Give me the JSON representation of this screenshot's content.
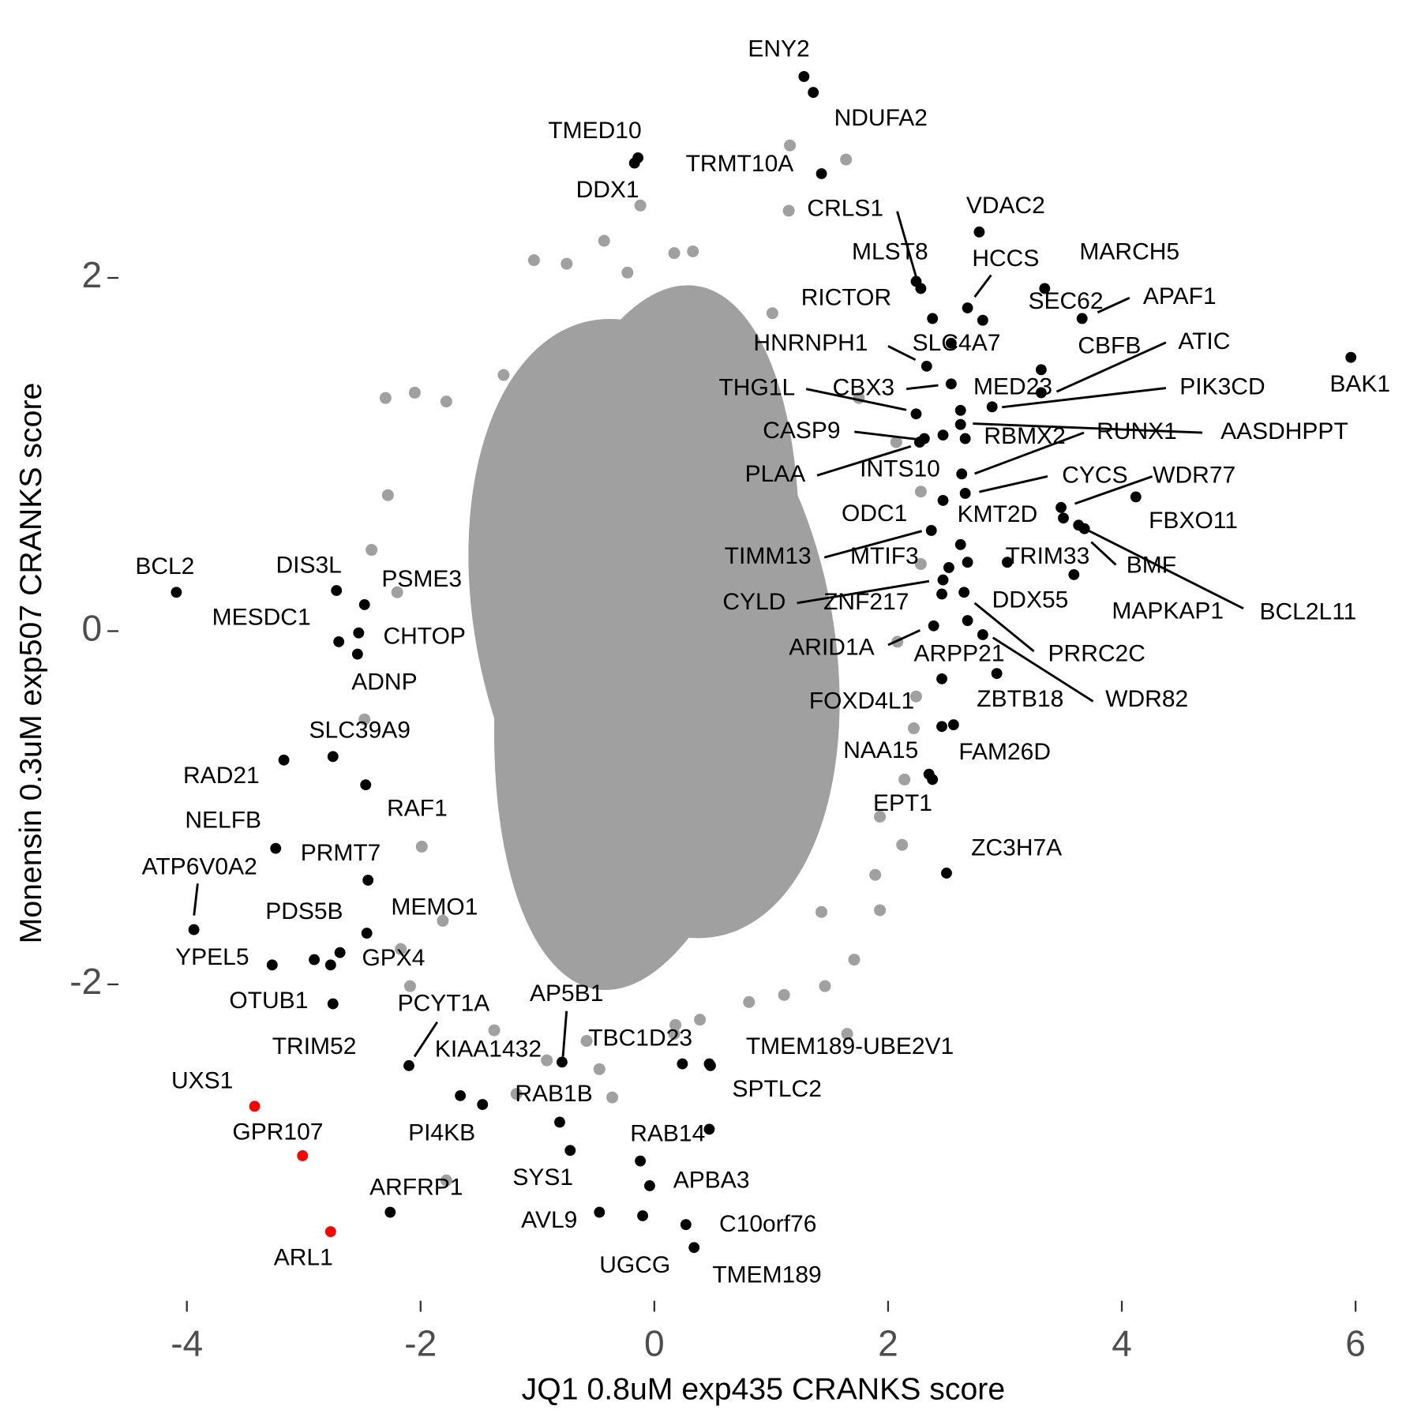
{
  "chart_data": {
    "type": "scatter",
    "xlabel": "JQ1 0.8uM exp435 CRANKS score",
    "ylabel": "Monensin 0.3uM exp507 CRANKS score",
    "xlim": [
      -4.5,
      6.1
    ],
    "ylim": [
      -3.75,
      3.3
    ],
    "xticks": [
      -4,
      -2,
      0,
      2,
      4,
      6
    ],
    "yticks": [
      -2,
      0,
      2
    ],
    "grid": false,
    "series": [
      {
        "color": "#a0a0a0",
        "x": [
          -2.3,
          -2.05,
          -1.78,
          -2.42,
          -2.28,
          -2.2,
          -1.99,
          -2.48,
          -1.81,
          -1.37,
          -1.18,
          -1.78,
          -0.58,
          -0.36,
          0.18,
          0.39,
          0.81,
          1.11,
          1.46,
          1.71,
          1.43,
          1.93,
          2.12,
          1.93,
          2.22,
          2.14,
          2.08,
          2.28,
          2.28,
          2.07,
          1.75,
          1.64,
          1.16,
          1.15,
          1.01,
          0.33,
          0.17,
          -0.23,
          -0.43,
          -0.75,
          -1.03,
          -1.29,
          -0.12,
          1.65,
          2.24,
          1.89,
          0.17,
          -0.47,
          -0.92,
          -2.09,
          -2.17
        ],
        "y": [
          1.32,
          1.35,
          1.3,
          0.46,
          0.77,
          0.22,
          -1.22,
          -0.5,
          -1.64,
          -2.26,
          -2.62,
          -3.11,
          -2.32,
          -2.64,
          -2.23,
          -2.2,
          -2.1,
          -2.06,
          -2.01,
          -1.86,
          -1.59,
          -1.58,
          -1.21,
          -1.05,
          -0.55,
          -0.84,
          -0.06,
          0.38,
          0.79,
          1.07,
          1.32,
          2.67,
          2.75,
          2.38,
          1.8,
          2.15,
          2.14,
          2.03,
          2.21,
          2.08,
          2.1,
          1.45,
          2.41,
          -2.28,
          -0.37,
          -1.38,
          -2.28,
          -2.48,
          -2.43,
          -2.01,
          -1.8
        ]
      },
      {
        "color": "#000000",
        "x": [
          1.28,
          1.36,
          -0.14,
          -0.17,
          1.43,
          2.78,
          2.24,
          2.28,
          3.34,
          2.68,
          2.38,
          2.54,
          2.81,
          3.66,
          2.33,
          3.31,
          2.54,
          3.31,
          2.89,
          2.62,
          2.24,
          2.62,
          2.66,
          2.31,
          2.27,
          2.47,
          2.63,
          2.66,
          2.47,
          3.48,
          4.12,
          3.5,
          3.63,
          3.68,
          2.62,
          2.37,
          3.02,
          2.68,
          2.52,
          3.59,
          2.47,
          2.46,
          2.65,
          2.39,
          2.68,
          2.81,
          2.46,
          2.93,
          2.46,
          2.56,
          2.35,
          2.38,
          2.5,
          5.96,
          -4.09,
          -2.72,
          -2.48,
          -2.7,
          -2.53,
          -2.54,
          -2.75,
          -3.17,
          -2.47,
          -3.24,
          -2.45,
          -3.94,
          -2.46,
          -3.27,
          -2.91,
          -2.69,
          -2.77,
          -2.75,
          -2.1,
          -0.79,
          0.24,
          0.47,
          0.48,
          -1.66,
          -1.47,
          -0.81,
          -0.72,
          0.47,
          -0.12,
          -0.04,
          -0.47,
          -0.1,
          0.27,
          0.34,
          -2.26
        ],
        "y": [
          3.14,
          3.05,
          2.68,
          2.65,
          2.59,
          2.26,
          1.98,
          1.94,
          1.94,
          1.83,
          1.77,
          1.63,
          1.76,
          1.77,
          1.5,
          1.48,
          1.4,
          1.35,
          1.27,
          1.25,
          1.23,
          1.17,
          1.09,
          1.09,
          1.07,
          1.11,
          0.89,
          0.78,
          0.74,
          0.7,
          0.76,
          0.64,
          0.6,
          0.58,
          0.49,
          0.57,
          0.39,
          0.39,
          0.36,
          0.32,
          0.29,
          0.21,
          0.22,
          0.03,
          0.06,
          -0.02,
          -0.27,
          -0.24,
          -0.54,
          -0.53,
          -0.81,
          -0.84,
          -1.37,
          1.55,
          0.22,
          0.23,
          0.15,
          -0.06,
          -0.01,
          -0.13,
          -0.71,
          -0.73,
          -0.87,
          -1.23,
          -1.41,
          -1.69,
          -1.71,
          -1.89,
          -1.86,
          -1.82,
          -1.89,
          -2.11,
          -2.46,
          -2.44,
          -2.45,
          -2.45,
          -2.46,
          -2.63,
          -2.68,
          -2.78,
          -2.94,
          -2.82,
          -3.0,
          -3.14,
          -3.29,
          -3.31,
          -3.36,
          -3.49,
          -3.29
        ],
        "labels": [
          "ENY2",
          "NDUFA2",
          "TMED10",
          "DDX1",
          "TRMT10A",
          "VDAC2",
          "MLST8",
          "CRLS1",
          "MARCH5",
          "HCCS",
          "RICTOR",
          "SLC4A7",
          "SEC62",
          "APAF1",
          "HNRNPH1",
          "CBFB",
          "CBX3",
          "ATIC",
          "PIK3CD",
          "MED23",
          "THG1L",
          "AASDHPPT",
          "RBMX2",
          "CASP9",
          "PLAA",
          null,
          "RUNX1",
          "CYCS",
          "INTS10",
          "WDR77",
          "FBXO11",
          "KMT2D",
          "BCL2L11",
          "BMF",
          "ODC1",
          "TIMM13",
          "TRIM33",
          null,
          "MTIF3",
          "MAPKAP1",
          "CYLD",
          "ZNF217",
          "DDX55",
          "ARID1A",
          "PRRC2C",
          "WDR82",
          "ARPP21",
          "ZBTB18",
          "FOXD4L1",
          "FAM26D",
          "NAA15",
          "EPT1",
          "ZC3H7A",
          "BAK1",
          "BCL2",
          "DIS3L",
          "PSME3",
          "MESDC1",
          "CHTOP",
          "ADNP",
          "SLC39A9",
          "RAD21",
          "RAF1",
          "NELFB",
          "PRMT7",
          "ATP6V0A2",
          "MEMO1",
          "YPEL5",
          "PDS5B",
          "GPX4",
          "TRIM52",
          "OTUB1",
          "PCYT1A",
          "AP5B1",
          "TBC1D23",
          "TMEM189-UBE2V1",
          "SPTLC2",
          "KIAA1432",
          "PI4KB",
          "RAB1B",
          "SYS1",
          "RAB14",
          null,
          "APBA3",
          "AVL9",
          "UGCG",
          "C10orf76",
          "TMEM189",
          "ARFRP1"
        ]
      },
      {
        "color": "#ff0000",
        "x": [
          -3.42,
          -3.01,
          -2.77
        ],
        "y": [
          -2.69,
          -2.97,
          -3.4
        ],
        "labels": [
          "UXS1",
          "GPR107",
          "ARL1"
        ]
      }
    ]
  }
}
